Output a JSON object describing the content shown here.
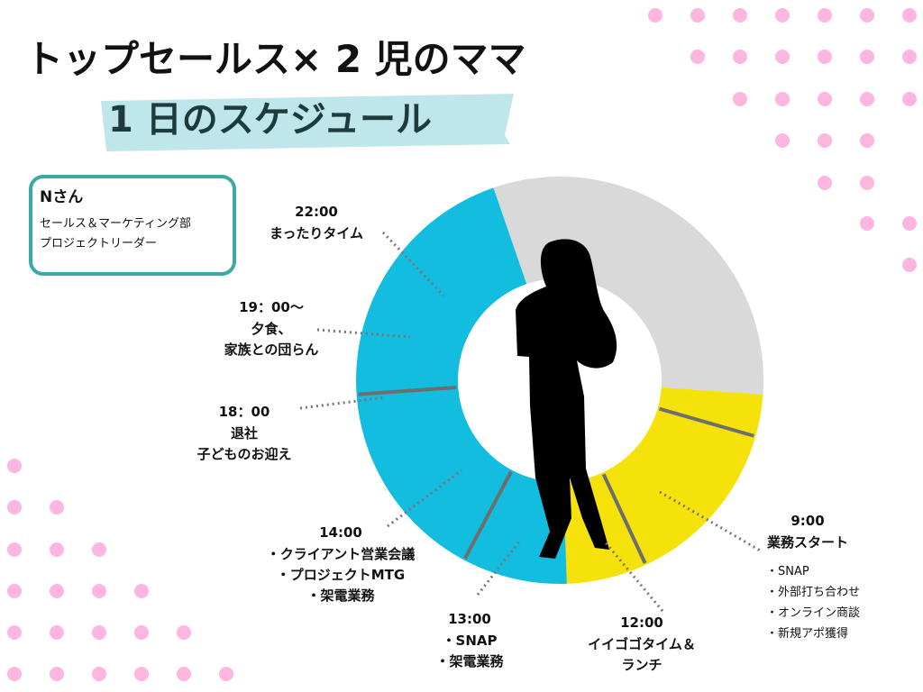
{
  "header": {
    "title_line1": "トップセールス× 2 児のママ",
    "title_line2": "1 日のスケジュール"
  },
  "person": {
    "name": "Nさん",
    "department": "セールス＆マーケティング部",
    "role": "プロジェクトリーダー"
  },
  "schedule": [
    {
      "time": "22:00",
      "lines": [
        "まったりタイム"
      ]
    },
    {
      "time": "19：00〜",
      "lines": [
        "夕食、",
        "家族との団らん"
      ]
    },
    {
      "time": "18：00",
      "lines": [
        "退社",
        "子どものお迎え"
      ]
    },
    {
      "time": "14:00",
      "lines": [
        "・クライアント営業会議",
        "・プロジェクトMTG",
        "・架電業務"
      ]
    },
    {
      "time": "13:00",
      "lines": [
        "・SNAP",
        "・架電業務"
      ]
    },
    {
      "time": "12:00",
      "lines": [
        "イイゴゴタイム＆",
        "ランチ"
      ]
    },
    {
      "time": "9:00",
      "lines": [
        "業務スタート"
      ],
      "details": [
        "・SNAP",
        "・外部打ち合わせ",
        "・オンライン商談",
        "・新規アポ獲得"
      ]
    }
  ]
}
